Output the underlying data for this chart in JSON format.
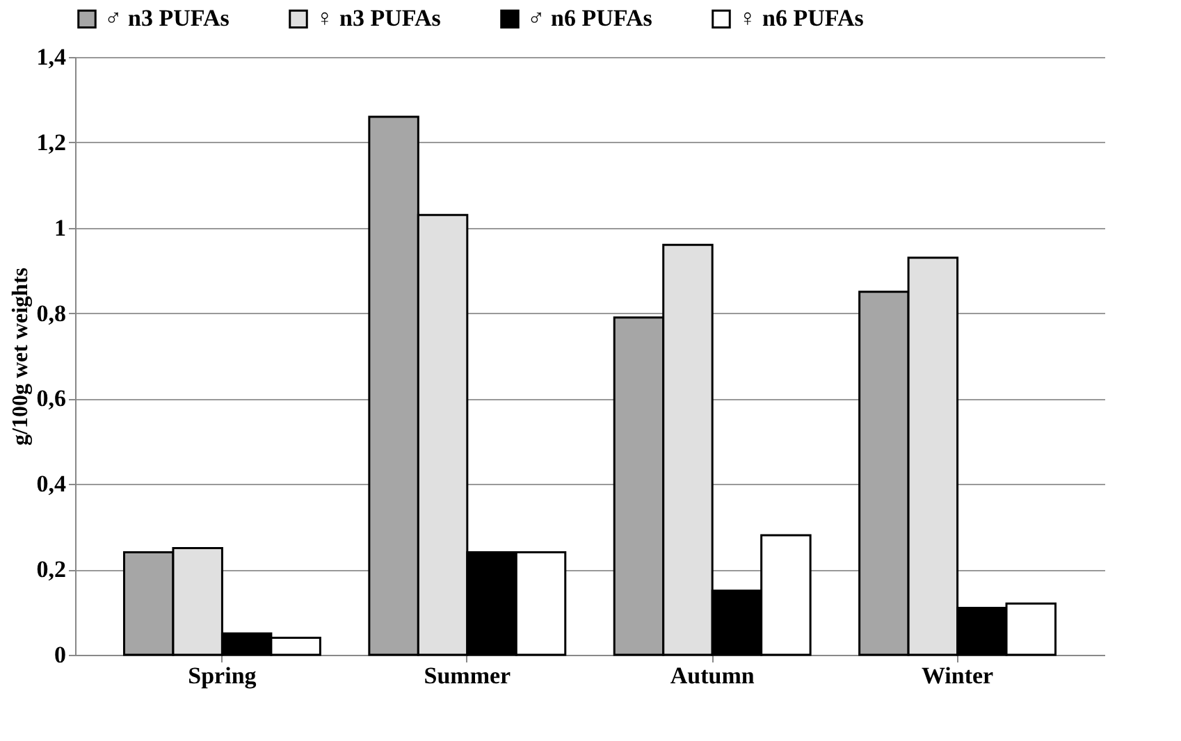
{
  "chart_data": {
    "type": "bar",
    "ylabel": "g/100g wet weights",
    "categories": [
      "Spring",
      "Summer",
      "Autumn",
      "Winter"
    ],
    "series": [
      {
        "name": "♂ n3 PUFAs",
        "color": "#a6a6a6",
        "values": [
          0.24,
          1.26,
          0.79,
          0.85
        ]
      },
      {
        "name": "♀ n3 PUFAs",
        "color": "#e0e0e0",
        "values": [
          0.25,
          1.03,
          0.96,
          0.93
        ]
      },
      {
        "name": "♂ n6 PUFAs",
        "color": "#000000",
        "values": [
          0.05,
          0.24,
          0.15,
          0.11
        ]
      },
      {
        "name": "♀ n6 PUFAs",
        "color": "#ffffff",
        "values": [
          0.04,
          0.24,
          0.28,
          0.12
        ]
      }
    ],
    "ylim": [
      0,
      1.4
    ],
    "yticks": [
      0,
      {
        "value": 0.2,
        "label": "0,2"
      },
      {
        "value": 0.4,
        "label": "0,4"
      },
      {
        "value": 0.6,
        "label": "0,6"
      },
      {
        "value": 0.8,
        "label": "0,8"
      },
      1,
      {
        "value": 1.2,
        "label": "1,2"
      },
      {
        "value": 1.4,
        "label": "1,4"
      }
    ],
    "grid": "y",
    "legend": "top"
  }
}
